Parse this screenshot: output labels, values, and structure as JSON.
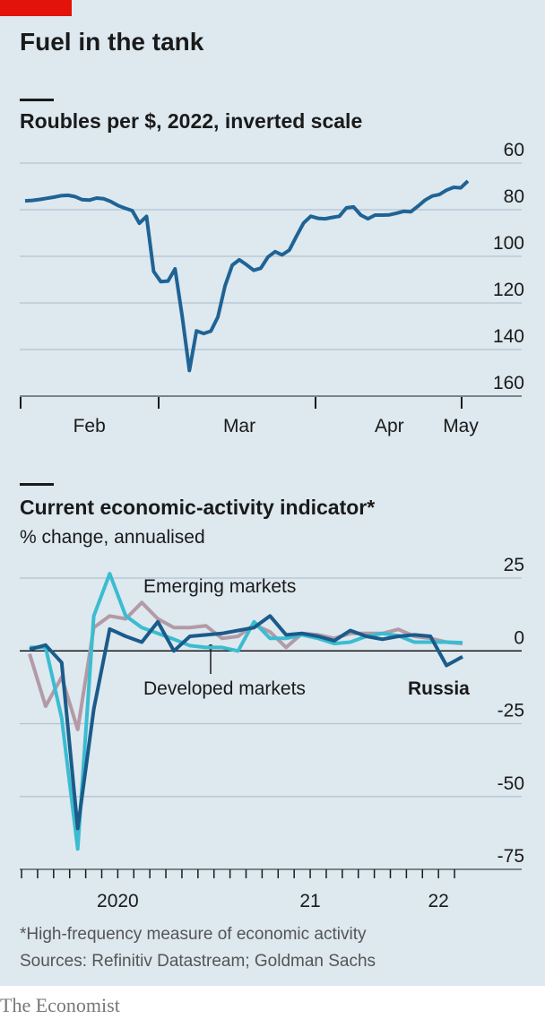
{
  "title": "Fuel in the tank",
  "chart_data": [
    {
      "type": "line",
      "title": "Roubles per $, 2022, inverted scale",
      "categories": [
        null,
        null,
        null,
        null,
        null,
        null,
        null,
        null,
        null,
        "Feb",
        null,
        null,
        null,
        null,
        null,
        null,
        null,
        null,
        null,
        null,
        null,
        null,
        null,
        null,
        null,
        null,
        null,
        null,
        null,
        null,
        "Mar",
        null,
        null,
        null,
        null,
        null,
        null,
        null,
        null,
        null,
        null,
        null,
        null,
        null,
        null,
        null,
        null,
        null,
        null,
        null,
        null,
        "Apr",
        null,
        null,
        null,
        null,
        null,
        null,
        null,
        null,
        null,
        "May",
        null
      ],
      "values": [
        76.2,
        76,
        75.6,
        75.1,
        74.6,
        74,
        73.8,
        74.4,
        75.7,
        75.9,
        75,
        75.3,
        76.5,
        78.2,
        79.4,
        80.4,
        85.8,
        82.9,
        106.5,
        110.9,
        110.6,
        105.4,
        125.9,
        149,
        132,
        133.1,
        132.1,
        126,
        112.6,
        103.8,
        101.5,
        103.6,
        106,
        105.1,
        100.3,
        98,
        99.4,
        97.3,
        91.3,
        85.7,
        82.8,
        83.7,
        83.9,
        83.3,
        82.8,
        79.2,
        78.8,
        82.3,
        83.9,
        82.3,
        82.3,
        82.2,
        81.5,
        80.7,
        80.9,
        78.5,
        75.9,
        74.1,
        73.5,
        71.6,
        70.4,
        70.6,
        67.7
      ],
      "color": "#1f6395",
      "ylim": [
        60,
        160
      ],
      "yticks": [
        60,
        80,
        100,
        120,
        140,
        160
      ],
      "inverted": true,
      "grid": true
    },
    {
      "type": "line",
      "title": "Current economic-activity indicator*",
      "subtitle": "% change, annualised",
      "categories": [
        null,
        null,
        null,
        null,
        null,
        "2020",
        null,
        null,
        null,
        null,
        null,
        null,
        null,
        null,
        null,
        null,
        null,
        "21",
        null,
        null,
        null,
        null,
        null,
        null,
        null,
        "22",
        null,
        null
      ],
      "series": [
        {
          "name": "Emerging markets",
          "color": "#b39aa6",
          "values": [
            -1,
            -19,
            -9,
            -27,
            8,
            12,
            11,
            16.6,
            11,
            8,
            8,
            8.6,
            4.3,
            5,
            9,
            6.5,
            1.2,
            6,
            5.5,
            4.3,
            6,
            6,
            6,
            7.4,
            5,
            4.3,
            3,
            2.5
          ]
        },
        {
          "name": "Developed markets",
          "color": "#3bbcd0",
          "values": [
            1.2,
            1.2,
            -23,
            -68,
            12,
            26.5,
            12,
            8,
            6,
            4,
            1.8,
            1.2,
            1.2,
            0,
            10,
            4.3,
            4.3,
            5.5,
            4.3,
            2.5,
            3,
            5,
            6,
            5.2,
            3,
            3,
            3,
            2.8
          ]
        },
        {
          "name": "Russia",
          "color": "#1a5b8a",
          "values": [
            0.5,
            2,
            -4,
            -61,
            -20,
            7.5,
            5,
            3,
            10,
            0,
            5,
            5.5,
            6,
            7,
            8,
            12,
            5.5,
            6,
            5,
            3.5,
            7,
            5,
            4,
            5,
            5.5,
            5,
            -5,
            -2
          ]
        }
      ],
      "ylim": [
        -75,
        25
      ],
      "yticks": [
        25,
        0,
        -25,
        -50,
        -75
      ],
      "grid": true
    }
  ],
  "footnote": "*High-frequency measure of economic activity",
  "source": "Sources: Refinitiv Datastream; Goldman Sachs",
  "publisher": "The Economist"
}
